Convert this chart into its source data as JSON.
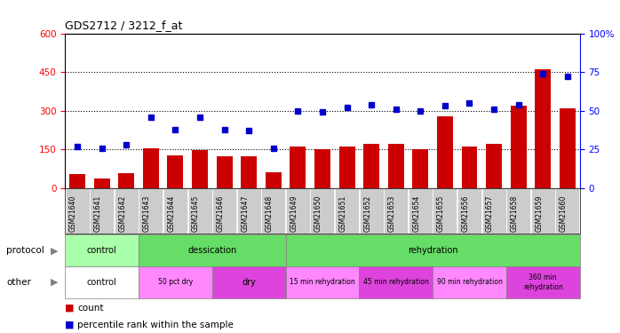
{
  "title": "GDS2712 / 3212_f_at",
  "samples": [
    "GSM21640",
    "GSM21641",
    "GSM21642",
    "GSM21643",
    "GSM21644",
    "GSM21645",
    "GSM21646",
    "GSM21647",
    "GSM21648",
    "GSM21649",
    "GSM21650",
    "GSM21651",
    "GSM21652",
    "GSM21653",
    "GSM21654",
    "GSM21655",
    "GSM21656",
    "GSM21657",
    "GSM21658",
    "GSM21659",
    "GSM21660"
  ],
  "count_values": [
    55,
    38,
    58,
    155,
    128,
    148,
    122,
    122,
    62,
    162,
    152,
    162,
    172,
    172,
    152,
    278,
    162,
    172,
    318,
    460,
    308
  ],
  "percentile_values": [
    27,
    26,
    28,
    46,
    38,
    46,
    38,
    37,
    26,
    50,
    49,
    52,
    54,
    51,
    50,
    53,
    55,
    51,
    54,
    74,
    72
  ],
  "bar_color": "#cc0000",
  "dot_color": "#0000cc",
  "left_ylim": [
    0,
    600
  ],
  "right_ylim": [
    0,
    100
  ],
  "left_yticks": [
    0,
    150,
    300,
    450,
    600
  ],
  "right_yticks": [
    0,
    25,
    50,
    75,
    100
  ],
  "right_yticklabels": [
    "0",
    "25",
    "50",
    "75",
    "100%"
  ],
  "proto_groups": [
    {
      "name": "control",
      "start": 0,
      "end": 3,
      "color": "#aaffaa"
    },
    {
      "name": "dessication",
      "start": 3,
      "end": 9,
      "color": "#66dd66"
    },
    {
      "name": "rehydration",
      "start": 9,
      "end": 21,
      "color": "#66dd66"
    }
  ],
  "other_groups": [
    {
      "name": "control",
      "start": 0,
      "end": 3,
      "color": "#ffffff"
    },
    {
      "name": "50 pct dry",
      "start": 3,
      "end": 6,
      "color": "#ff88ff"
    },
    {
      "name": "dry",
      "start": 6,
      "end": 9,
      "color": "#dd44dd"
    },
    {
      "name": "15 min rehydration",
      "start": 9,
      "end": 12,
      "color": "#ff88ff"
    },
    {
      "name": "45 min rehydration",
      "start": 12,
      "end": 15,
      "color": "#dd44dd"
    },
    {
      "name": "90 min rehydration",
      "start": 15,
      "end": 18,
      "color": "#ff88ff"
    },
    {
      "name": "360 min\nrehydration",
      "start": 18,
      "end": 21,
      "color": "#dd44dd"
    }
  ]
}
